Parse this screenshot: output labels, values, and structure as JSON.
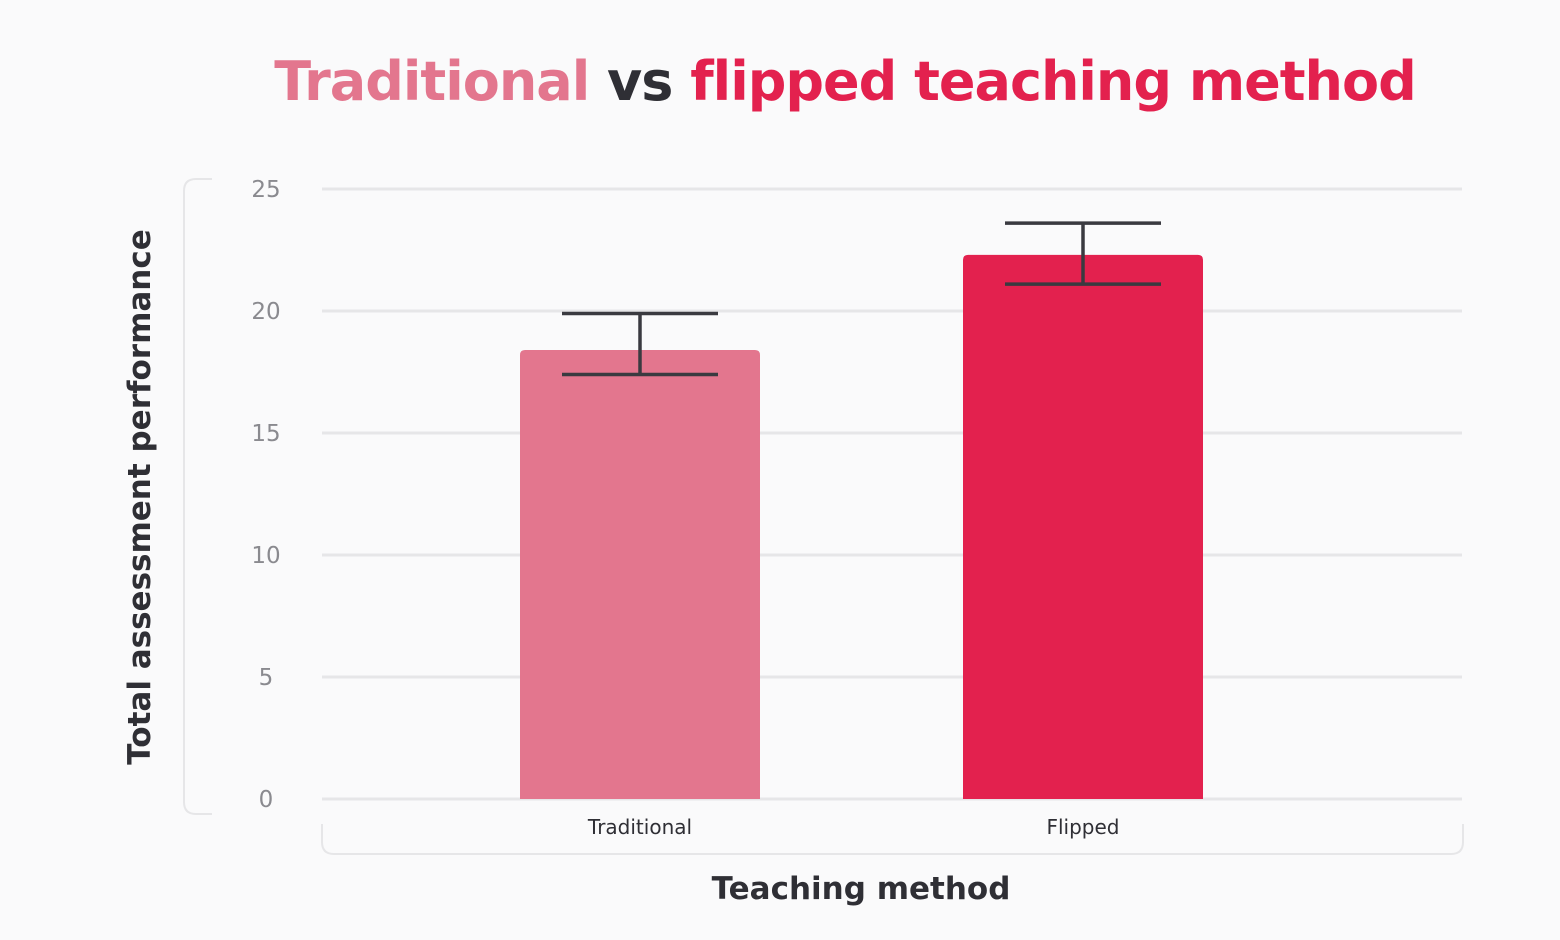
{
  "title": {
    "part1": "Traditional",
    "part2": "vs",
    "part3": "flipped teaching method"
  },
  "colors": {
    "traditional": "#e3768e",
    "flipped": "#e3214e",
    "dark_text": "#2f2f35",
    "grid": "#e6e6e8",
    "error_bar": "#3a3a40"
  },
  "chart_data": {
    "type": "bar",
    "categories": [
      "Traditional",
      "Flipped"
    ],
    "values": [
      18.4,
      22.3
    ],
    "error_low": [
      17.4,
      21.1
    ],
    "error_high": [
      19.9,
      23.6
    ],
    "xlabel": "Teaching method",
    "ylabel": "Total assessment performance",
    "ylim": [
      0,
      25
    ],
    "yticks": [
      0,
      5,
      10,
      15,
      20,
      25
    ],
    "grid": true
  }
}
